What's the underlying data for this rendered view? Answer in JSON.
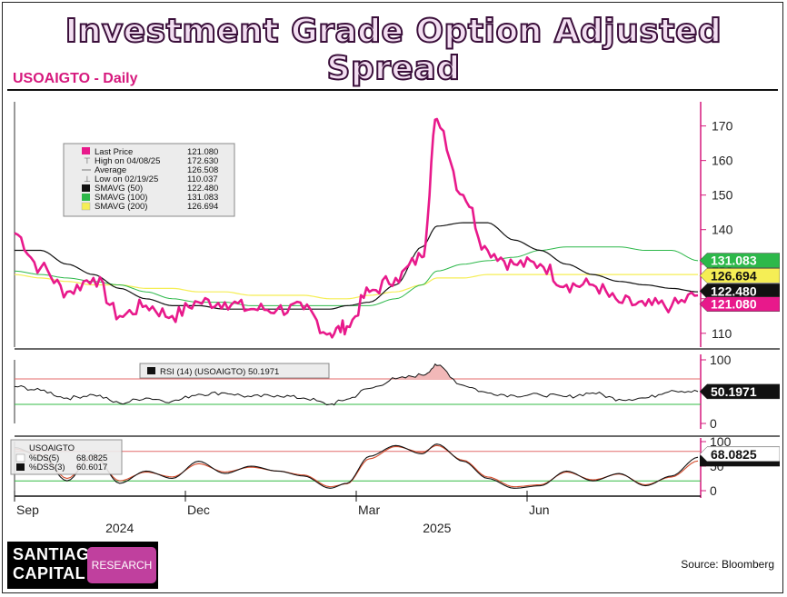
{
  "page": {
    "title": "Investment Grade Option Adjusted Spread",
    "subtitle": "USOAIGTO - Daily",
    "source": "Source: Bloomberg",
    "logo": {
      "line1": "SANTIAGO",
      "line2": "CAPITAL",
      "badge": "RESEARCH"
    }
  },
  "colors": {
    "price": "#e8198b",
    "smavg50": "#111111",
    "smavg100": "#2db84a",
    "smavg200": "#f5ee55",
    "rsi": "#111111",
    "ds": "#111111",
    "dss": "#d44a2a",
    "overbought": "#e46b6b",
    "oversold": "#33bb44",
    "axis_magenta": "#d6197d"
  },
  "chart_data": [
    {
      "type": "line",
      "panel": "price",
      "x": [
        "2024-08-26",
        "2024-09-09",
        "2024-09-23",
        "2024-10-07",
        "2024-10-21",
        "2024-11-04",
        "2024-11-18",
        "2024-12-02",
        "2024-12-16",
        "2024-12-30",
        "2025-01-13",
        "2025-01-27",
        "2025-02-10",
        "2025-02-19",
        "2025-03-03",
        "2025-03-17",
        "2025-03-31",
        "2025-04-08",
        "2025-04-22",
        "2025-05-05",
        "2025-05-19",
        "2025-06-02",
        "2025-06-16",
        "2025-06-30",
        "2025-07-14",
        "2025-07-28",
        "2025-08-11",
        "2025-08-25"
      ],
      "series": [
        {
          "name": "Last Price",
          "values": [
            139,
            129,
            122,
            126,
            115,
            118,
            115,
            119,
            119,
            117,
            117,
            117,
            110,
            112,
            122,
            126,
            132,
            172,
            150,
            134,
            130,
            130,
            124,
            124,
            119,
            118,
            118,
            121
          ]
        },
        {
          "name": "SMAVG (50)",
          "values": [
            134,
            134,
            130,
            127,
            123,
            120,
            118,
            118,
            117,
            117,
            117,
            117,
            117,
            118,
            119,
            124,
            135,
            141,
            142,
            142,
            137,
            134,
            130,
            127,
            125,
            124,
            123,
            122
          ]
        },
        {
          "name": "SMAVG (100)",
          "values": [
            128,
            127,
            126,
            125,
            124,
            122,
            120,
            119,
            119,
            118,
            118,
            118,
            118,
            118,
            118,
            120,
            124,
            128,
            130,
            131,
            132,
            134,
            135,
            135,
            135,
            134,
            134,
            131
          ]
        },
        {
          "name": "SMAVG (200)",
          "values": [
            127,
            126,
            125,
            124,
            124,
            123,
            123,
            122,
            122,
            121,
            121,
            121,
            120,
            120,
            121,
            122,
            124,
            126,
            126,
            127,
            127,
            127,
            127,
            127,
            127,
            127,
            127,
            127
          ]
        }
      ],
      "legend": {
        "placement": "top-left",
        "entries": [
          {
            "label": "Last Price",
            "value": "121.080"
          },
          {
            "label": "High on 04/08/25",
            "value": "172.630"
          },
          {
            "label": "Average",
            "value": "126.508"
          },
          {
            "label": "Low on 02/19/25",
            "value": "110.037"
          },
          {
            "label": "SMAVG (50)",
            "value": "122.480"
          },
          {
            "label": "SMAVG (100)",
            "value": "131.083"
          },
          {
            "label": "SMAVG (200)",
            "value": "126.694"
          }
        ]
      },
      "yticks": [
        110,
        120,
        130,
        140,
        150,
        160,
        170
      ],
      "ylim": [
        106,
        177
      ],
      "last_value_tags": [
        "131.083",
        "126.694",
        "122.480",
        "121.080"
      ]
    },
    {
      "type": "line",
      "panel": "rsi",
      "x": [
        "2024-08-26",
        "2024-09-09",
        "2024-09-23",
        "2024-10-07",
        "2024-10-21",
        "2024-11-04",
        "2024-11-18",
        "2024-12-02",
        "2024-12-16",
        "2024-12-30",
        "2025-01-13",
        "2025-01-27",
        "2025-02-10",
        "2025-02-19",
        "2025-03-03",
        "2025-03-17",
        "2025-03-31",
        "2025-04-08",
        "2025-04-22",
        "2025-05-05",
        "2025-05-19",
        "2025-06-02",
        "2025-06-16",
        "2025-06-30",
        "2025-07-14",
        "2025-07-28",
        "2025-08-11",
        "2025-08-25"
      ],
      "series": [
        {
          "name": "RSI (14) (USOAIGTO)",
          "values": [
            58,
            52,
            40,
            45,
            32,
            40,
            35,
            46,
            48,
            42,
            44,
            40,
            30,
            38,
            55,
            70,
            76,
            91,
            60,
            48,
            44,
            45,
            42,
            48,
            38,
            40,
            52,
            50.1971
          ]
        }
      ],
      "legend_label": "RSI (14) (USOAIGTO) 50.1971",
      "last_value_tag": "50.1971",
      "yticks": [
        0,
        50,
        100
      ],
      "ylim": [
        0,
        100
      ],
      "overbought": 70,
      "oversold": 30
    },
    {
      "type": "line",
      "panel": "stochastic",
      "x": [
        "2024-08-26",
        "2024-09-09",
        "2024-09-23",
        "2024-10-07",
        "2024-10-21",
        "2024-11-04",
        "2024-11-18",
        "2024-12-02",
        "2024-12-16",
        "2024-12-30",
        "2025-01-13",
        "2025-01-27",
        "2025-02-10",
        "2025-02-19",
        "2025-03-03",
        "2025-03-17",
        "2025-03-31",
        "2025-04-08",
        "2025-04-22",
        "2025-05-05",
        "2025-05-19",
        "2025-06-02",
        "2025-06-16",
        "2025-06-30",
        "2025-07-14",
        "2025-07-28",
        "2025-08-11",
        "2025-08-25"
      ],
      "series": [
        {
          "name": "%DS(5)",
          "values": [
            88,
            70,
            20,
            75,
            15,
            40,
            25,
            60,
            35,
            50,
            40,
            30,
            5,
            15,
            70,
            92,
            75,
            95,
            60,
            25,
            5,
            10,
            40,
            20,
            35,
            10,
            30,
            68.0825
          ]
        },
        {
          "name": "%DSS(3)",
          "values": [
            85,
            72,
            25,
            70,
            20,
            38,
            28,
            55,
            38,
            48,
            40,
            32,
            8,
            14,
            65,
            90,
            78,
            92,
            62,
            28,
            8,
            12,
            38,
            22,
            34,
            12,
            28,
            60.6017
          ]
        }
      ],
      "legend_title": "USOAIGTO",
      "legend_entries": [
        {
          "label": "%DS(5)",
          "value": "68.0825"
        },
        {
          "label": "%DSS(3)",
          "value": "60.6017"
        }
      ],
      "last_value_tag": "68.0825",
      "yticks": [
        0,
        50,
        100
      ],
      "ylim": [
        0,
        100
      ],
      "overbought": 80,
      "oversold": 20
    }
  ],
  "x_axis": {
    "month_labels": [
      {
        "label": "Sep",
        "date": "2024-08-26"
      },
      {
        "label": "Dec",
        "date": "2024-11-25"
      },
      {
        "label": "Mar",
        "date": "2025-02-24"
      },
      {
        "label": "Jun",
        "date": "2025-05-26"
      }
    ],
    "year_labels": [
      {
        "label": "2024",
        "date": "2024-10-21"
      },
      {
        "label": "2025",
        "date": "2025-04-08"
      }
    ]
  }
}
